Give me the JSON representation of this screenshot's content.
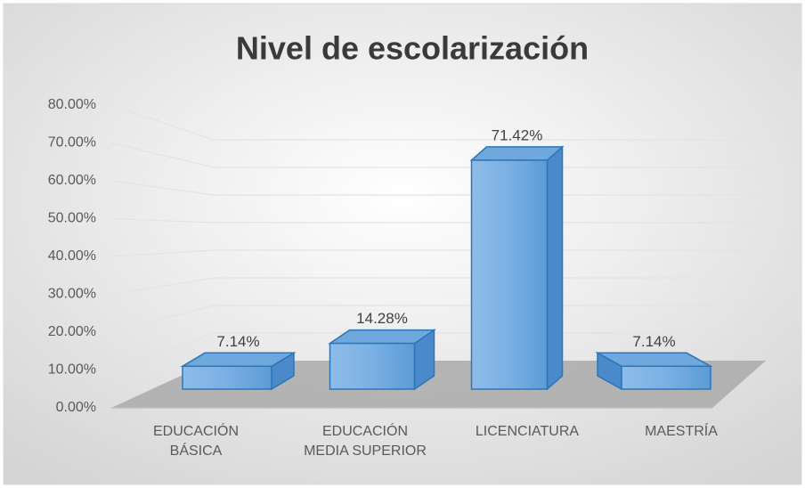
{
  "chart_data": {
    "type": "bar",
    "title": "Nivel de escolarización",
    "categories": [
      "EDUCACIÓN\nBÁSICA",
      "EDUCACIÓN\nMEDIA SUPERIOR",
      "LICENCIATURA",
      "MAESTRÍA"
    ],
    "values": [
      7.14,
      14.28,
      71.42,
      7.14
    ],
    "value_labels": [
      "7.14%",
      "14.28%",
      "71.42%",
      "7.14%"
    ],
    "color": "#5b9bd5",
    "ylim": [
      0,
      80
    ],
    "yticks": [
      {
        "value": 0,
        "label": "0.00%"
      },
      {
        "value": 10,
        "label": "10.00%"
      },
      {
        "value": 20,
        "label": "20.00%"
      },
      {
        "value": 30,
        "label": "30.00%"
      },
      {
        "value": 40,
        "label": "40.00%"
      },
      {
        "value": 50,
        "label": "50.00%"
      },
      {
        "value": 60,
        "label": "60.00%"
      },
      {
        "value": 70,
        "label": "70.00%"
      },
      {
        "value": 80,
        "label": "80.00%"
      }
    ],
    "grid": true
  }
}
